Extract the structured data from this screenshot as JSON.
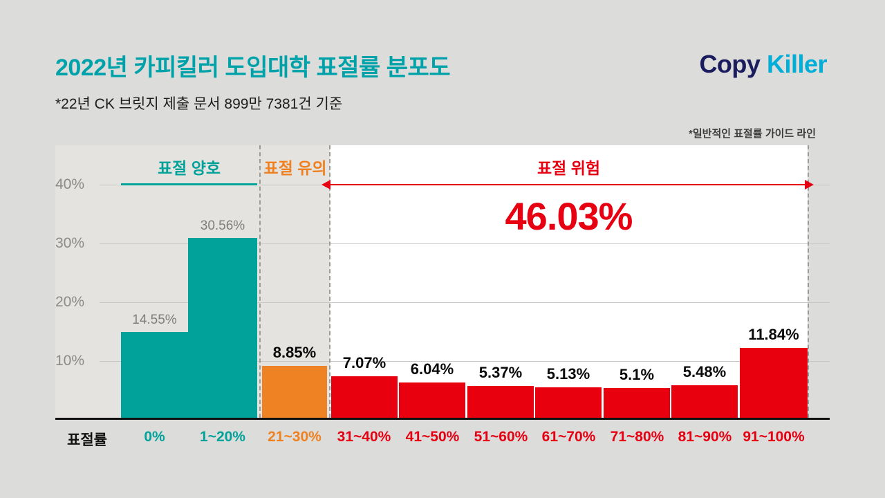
{
  "header": {
    "title": "2022년 카피킬러 도입대학 표절률 분포도",
    "subtitle": "*22년 CK 브릿지 제출 문서 899만 7381건 기준",
    "logo": {
      "part1": "Copy",
      "part2": "Killer"
    },
    "guide_note": "*일반적인 표절률 가이드 라인"
  },
  "chart_data": {
    "type": "bar",
    "title": "2022년 카피킬러 도입대학 표절률 분포도",
    "xlabel": "표절률",
    "ylabel": "",
    "ylim": [
      0,
      45
    ],
    "grid": true,
    "y_ticks": [
      "40%",
      "30%",
      "20%",
      "10%"
    ],
    "categories": [
      "0%",
      "1~20%",
      "21~30%",
      "31~40%",
      "41~50%",
      "51~60%",
      "61~70%",
      "71~80%",
      "81~90%",
      "91~100%"
    ],
    "values": [
      14.55,
      30.56,
      8.85,
      7.07,
      6.04,
      5.37,
      5.13,
      5.1,
      5.48,
      11.84
    ],
    "value_labels": [
      "14.55%",
      "30.56%",
      "8.85%",
      "7.07%",
      "6.04%",
      "5.37%",
      "5.13%",
      "5.1%",
      "5.48%",
      "11.84%"
    ],
    "zones": [
      {
        "label": "표절 양호",
        "color": "#00a29a",
        "categories": "0% ~ 1~20%"
      },
      {
        "label": "표절 유의",
        "color": "#ef8222",
        "categories": "21~30%"
      },
      {
        "label": "표절 위험",
        "color": "#e60012",
        "categories": "31~40% ~ 91~100%",
        "total": "46.03%"
      }
    ]
  },
  "colors": {
    "page_background": "#dcdcda",
    "chart_gray_zone": "#e5e3e0",
    "chart_white_zone": "#ffffff",
    "title_teal": "#00a2aa",
    "bar_teal": "#00a29a",
    "bar_orange": "#ef8222",
    "bar_red": "#e8000f",
    "danger_red": "#e60012",
    "logo_navy": "#1a1c5e",
    "logo_cyan": "#00aed8"
  }
}
